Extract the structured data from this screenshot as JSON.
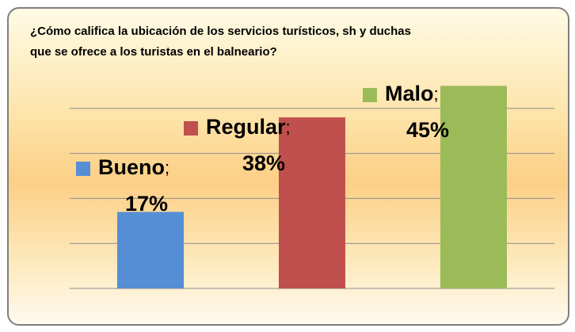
{
  "chart_data": {
    "type": "bar",
    "title": "¿Cómo califica la ubicación de los servicios turísticos, sh y duchas que se ofrece a los turistas en el balneario?",
    "categories": [
      "Bueno",
      "Regular",
      "Malo"
    ],
    "values": [
      17,
      38,
      45
    ],
    "value_labels": [
      "17%",
      "38%",
      "45%"
    ],
    "label_separator": ";",
    "colors": [
      "#558ed5",
      "#c0504d",
      "#9bbb59"
    ],
    "ylim": [
      0,
      50
    ],
    "yticks": [
      0,
      10,
      20,
      30,
      40
    ],
    "grid": true
  }
}
